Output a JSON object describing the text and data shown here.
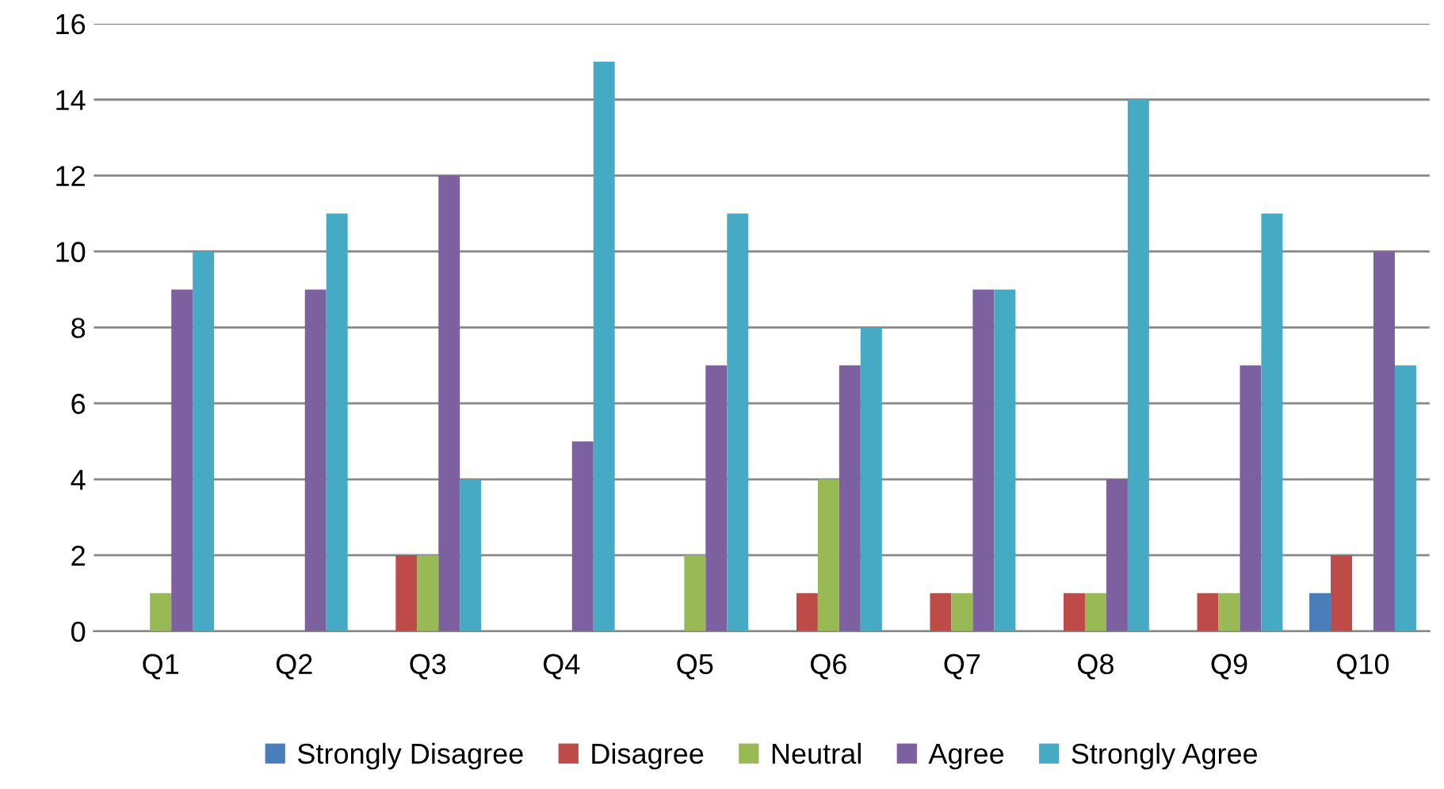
{
  "chart_data": {
    "type": "bar",
    "categories": [
      "Q1",
      "Q2",
      "Q3",
      "Q4",
      "Q5",
      "Q6",
      "Q7",
      "Q8",
      "Q9",
      "Q10"
    ],
    "series": [
      {
        "name": "Strongly Disagree",
        "color": "#4a7ebb",
        "values": [
          0,
          0,
          0,
          0,
          0,
          0,
          0,
          0,
          0,
          1
        ]
      },
      {
        "name": "Disagree",
        "color": "#be4b48",
        "values": [
          0,
          0,
          2,
          0,
          0,
          1,
          1,
          1,
          1,
          2
        ]
      },
      {
        "name": "Neutral",
        "color": "#98b954",
        "values": [
          1,
          0,
          2,
          0,
          2,
          4,
          1,
          1,
          1,
          0
        ]
      },
      {
        "name": "Agree",
        "color": "#7d60a0",
        "values": [
          9,
          9,
          12,
          5,
          7,
          7,
          9,
          4,
          7,
          10
        ]
      },
      {
        "name": "Strongly Agree",
        "color": "#46aac5",
        "values": [
          10,
          11,
          4,
          15,
          11,
          8,
          9,
          14,
          11,
          7
        ]
      }
    ],
    "ylim": [
      0,
      16
    ],
    "yticks": [
      0,
      2,
      4,
      6,
      8,
      10,
      12,
      14,
      16
    ],
    "grid": "y",
    "legend": "bottom"
  }
}
